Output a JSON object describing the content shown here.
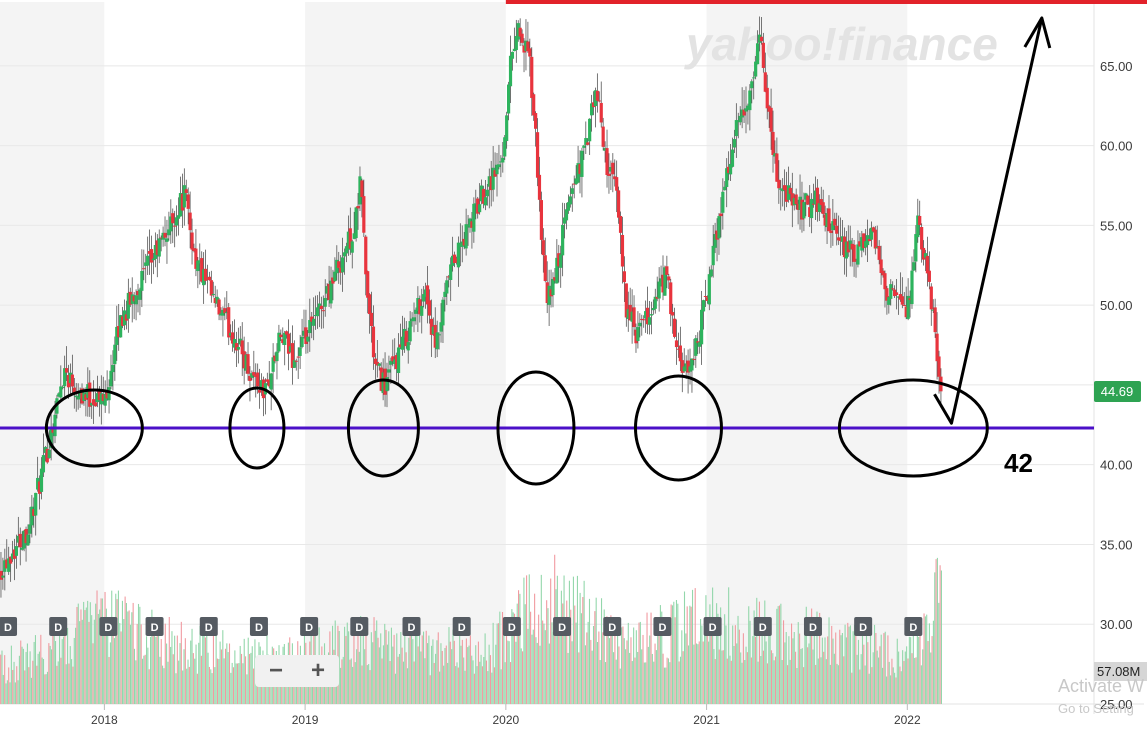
{
  "chart_data": {
    "type": "candlestick",
    "watermark": "yahoo!finance",
    "y_ticks": [
      "65.00",
      "60.00",
      "55.00",
      "50.00",
      "45.00",
      "40.00",
      "35.00",
      "30.00",
      "25.00"
    ],
    "ylim": [
      25,
      69
    ],
    "x_ticks": [
      "2018",
      "2019",
      "2020",
      "2021",
      "2022"
    ],
    "xlim": [
      2017.48,
      2022.93
    ],
    "last_price": "44.69",
    "volume_label": "57.08M",
    "accent_colors": {
      "up": "#2db35d",
      "down": "#e8343d",
      "price_tag": "#2ea352",
      "resistance": "#e2222a",
      "support": "#4b10c8"
    },
    "price_path": [
      [
        2017.48,
        33.5
      ],
      [
        2017.62,
        36.0
      ],
      [
        2017.7,
        40.0
      ],
      [
        2017.8,
        46.0
      ],
      [
        2017.88,
        44.5
      ],
      [
        2018.0,
        44.0
      ],
      [
        2018.08,
        49.0
      ],
      [
        2018.2,
        52.0
      ],
      [
        2018.33,
        55.0
      ],
      [
        2018.4,
        57.0
      ],
      [
        2018.45,
        53.0
      ],
      [
        2018.55,
        50.0
      ],
      [
        2018.65,
        48.0
      ],
      [
        2018.72,
        46.0
      ],
      [
        2018.8,
        44.5
      ],
      [
        2018.88,
        48.0
      ],
      [
        2018.95,
        46.5
      ],
      [
        2019.05,
        49.0
      ],
      [
        2019.15,
        52.0
      ],
      [
        2019.25,
        55.0
      ],
      [
        2019.28,
        58.0
      ],
      [
        2019.3,
        52.0
      ],
      [
        2019.35,
        46.0
      ],
      [
        2019.4,
        45.0
      ],
      [
        2019.5,
        48.0
      ],
      [
        2019.6,
        51.0
      ],
      [
        2019.65,
        47.0
      ],
      [
        2019.72,
        52.0
      ],
      [
        2019.82,
        55.0
      ],
      [
        2019.9,
        57.5
      ],
      [
        2019.98,
        59.0
      ],
      [
        2020.03,
        66.0
      ],
      [
        2020.06,
        67.5
      ],
      [
        2020.12,
        65.0
      ],
      [
        2020.15,
        60.0
      ],
      [
        2020.2,
        50.0
      ],
      [
        2020.25,
        52.0
      ],
      [
        2020.32,
        57.0
      ],
      [
        2020.4,
        60.0
      ],
      [
        2020.45,
        63.5
      ],
      [
        2020.5,
        59.0
      ],
      [
        2020.55,
        57.0
      ],
      [
        2020.6,
        50.0
      ],
      [
        2020.65,
        48.0
      ],
      [
        2020.72,
        49.5
      ],
      [
        2020.8,
        52.0
      ],
      [
        2020.85,
        47.0
      ],
      [
        2020.9,
        45.5
      ],
      [
        2020.96,
        48.0
      ],
      [
        2021.02,
        52.0
      ],
      [
        2021.08,
        57.0
      ],
      [
        2021.15,
        61.0
      ],
      [
        2021.22,
        63.0
      ],
      [
        2021.27,
        67.0
      ],
      [
        2021.3,
        63.0
      ],
      [
        2021.35,
        58.0
      ],
      [
        2021.45,
        56.0
      ],
      [
        2021.55,
        56.5
      ],
      [
        2021.65,
        54.0
      ],
      [
        2021.75,
        53.0
      ],
      [
        2021.82,
        54.5
      ],
      [
        2021.9,
        51.0
      ],
      [
        2022.0,
        49.5
      ],
      [
        2022.05,
        55.0
      ],
      [
        2022.1,
        52.0
      ],
      [
        2022.15,
        47.0
      ],
      [
        2022.17,
        44.69
      ]
    ],
    "volume_profile": [
      [
        2017.48,
        30
      ],
      [
        2017.75,
        45
      ],
      [
        2017.95,
        70
      ],
      [
        2018.4,
        45
      ],
      [
        2018.8,
        40
      ],
      [
        2019.3,
        50
      ],
      [
        2019.9,
        40
      ],
      [
        2020.2,
        90
      ],
      [
        2020.6,
        45
      ],
      [
        2021.0,
        70
      ],
      [
        2021.3,
        60
      ],
      [
        2021.8,
        45
      ],
      [
        2022.05,
        40
      ],
      [
        2022.15,
        100
      ]
    ],
    "dividend_markers": [
      2017.52,
      2017.77,
      2018.02,
      2018.25,
      2018.52,
      2018.77,
      2019.02,
      2019.27,
      2019.53,
      2019.78,
      2020.03,
      2020.28,
      2020.53,
      2020.78,
      2021.03,
      2021.28,
      2021.53,
      2021.78,
      2022.03
    ],
    "dividend_label": "D",
    "annotations": {
      "support_level": 42.3,
      "support_label": "42",
      "resistance_level": 69.0,
      "circles_x": [
        2017.95,
        2018.76,
        2019.39,
        2020.15,
        2020.86,
        2022.03
      ],
      "arrow_bottom": [
        2022.22,
        42.6
      ],
      "arrow_top": [
        2022.67,
        68.0
      ]
    }
  },
  "ui": {
    "zoom_out": "−",
    "zoom_in": "+",
    "activate_title": "Activate W",
    "activate_sub": "Go to Setting"
  }
}
